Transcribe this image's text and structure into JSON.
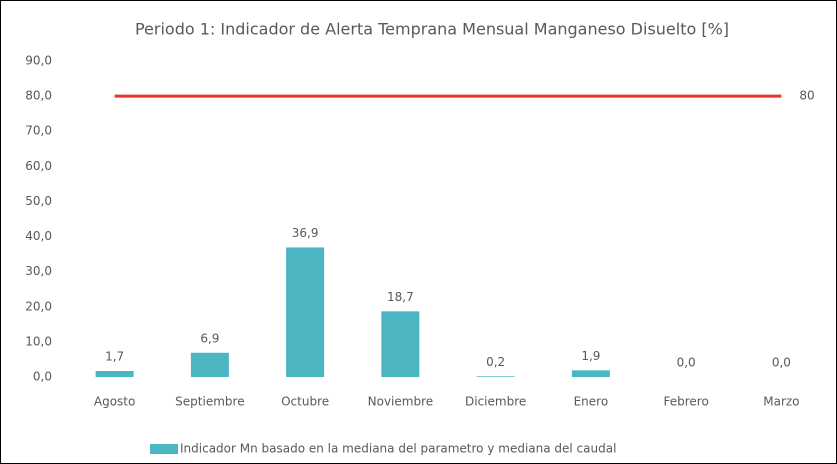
{
  "chart_data": {
    "type": "bar",
    "title": "Periodo 1: Indicador de Alerta Temprana Mensual Manganeso Disuelto [%]",
    "categories": [
      "Agosto",
      "Septiembre",
      "Octubre",
      "Noviembre",
      "Diciembre",
      "Enero",
      "Febrero",
      "Marzo"
    ],
    "series": [
      {
        "name": "Indicador Mn basado en la mediana del parametro y mediana del caudal",
        "color": "#4bb5c1",
        "values": [
          1.7,
          6.9,
          36.9,
          18.7,
          0.2,
          1.9,
          0,
          0
        ],
        "value_labels": [
          "1,7",
          "6,9",
          "36,9",
          "18,7",
          "0,2",
          "1,9",
          "0,0",
          "0,0"
        ]
      }
    ],
    "threshold": {
      "value": 80,
      "color": "#e8332f"
    },
    "ylim": [
      0,
      90
    ],
    "yticks": [
      {
        "value": 0,
        "label": "0,0"
      },
      {
        "value": 10,
        "label": "10,0"
      },
      {
        "value": 20,
        "label": "20,0"
      },
      {
        "value": 30,
        "label": "30,0"
      },
      {
        "value": 40,
        "label": "40,0"
      },
      {
        "value": 50,
        "label": "50,0"
      },
      {
        "value": 60,
        "label": "60,0"
      },
      {
        "value": 70,
        "label": "70,0"
      },
      {
        "value": 80,
        "label": "80,0"
      },
      {
        "value": 90,
        "label": "90,0"
      }
    ],
    "grid": false
  }
}
